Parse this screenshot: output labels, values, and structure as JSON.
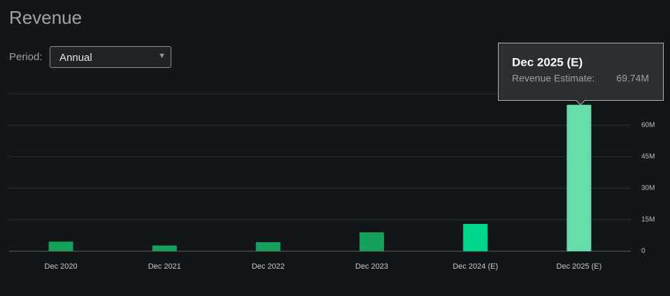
{
  "chart_data": {
    "type": "bar",
    "title": "Revenue",
    "categories": [
      "Dec 2020",
      "Dec 2021",
      "Dec 2022",
      "Dec 2023",
      "Dec 2024 (E)",
      "Dec 2025 (E)"
    ],
    "values": [
      4.6,
      2.7,
      4.3,
      9.0,
      13.0,
      69.74
    ],
    "colors": [
      "#16a15b",
      "#16a15b",
      "#16a15b",
      "#16a15b",
      "#00d68b",
      "#66dda8"
    ],
    "ylim": [
      0,
      75
    ],
    "yticks": [
      0,
      {
        "value": 15,
        "label": "15M"
      },
      {
        "value": 30,
        "label": "30M"
      },
      {
        "value": 45,
        "label": "45M"
      },
      {
        "value": 60,
        "label": "60M"
      }
    ],
    "grid": true,
    "tooltip": {
      "title": "Dec 2025 (E)",
      "label": "Revenue Estimate:",
      "value": "69.74M"
    }
  },
  "controls": {
    "period_label": "Period:",
    "period_value": "Annual"
  }
}
